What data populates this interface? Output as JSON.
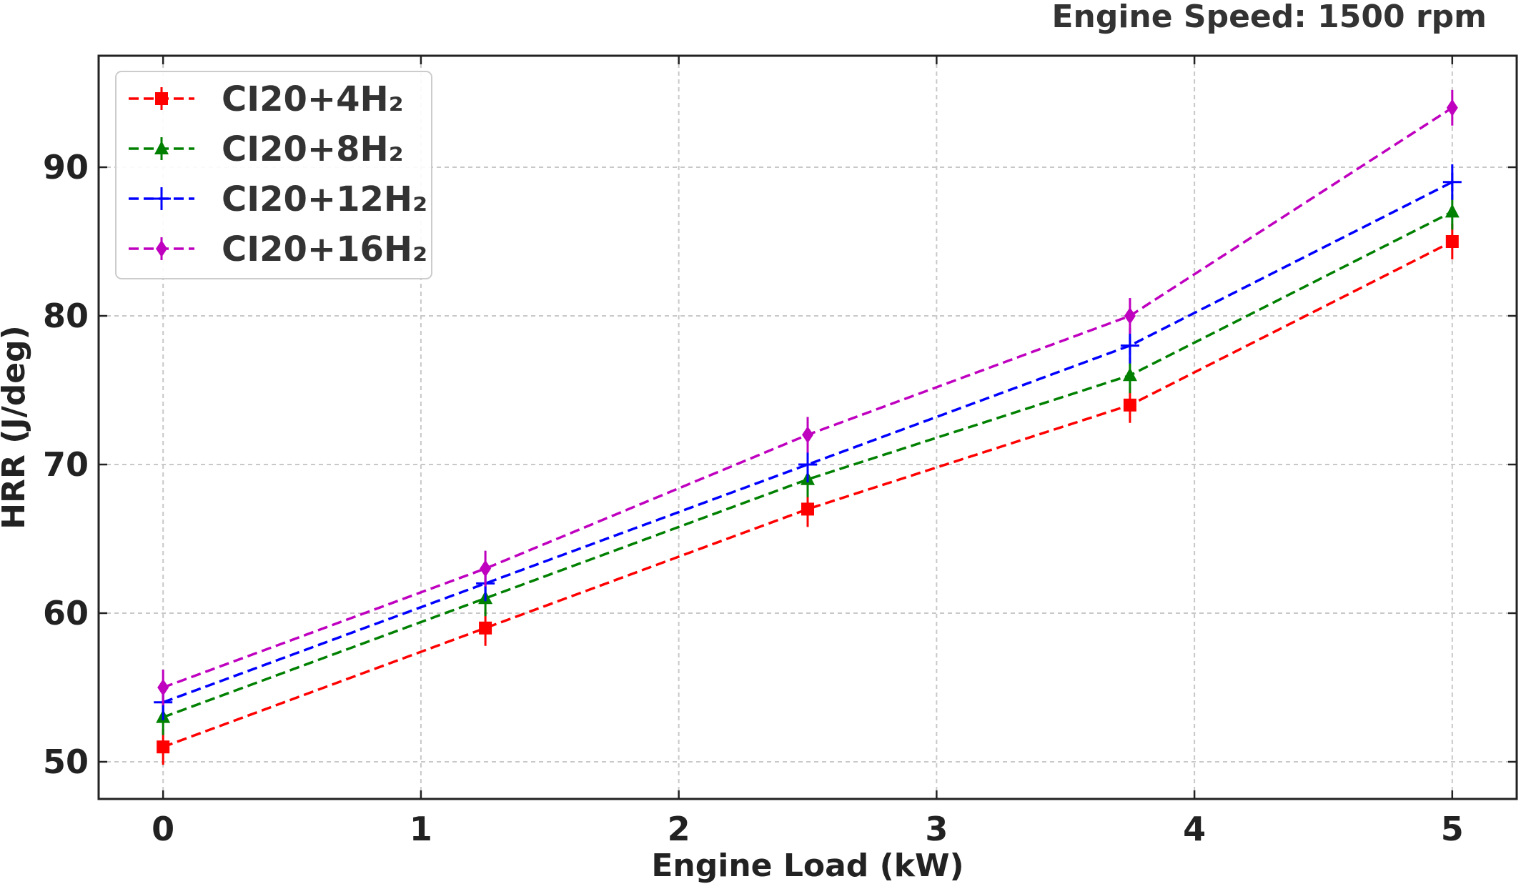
{
  "chart_data": {
    "type": "line",
    "annotation": "Engine Speed: 1500 rpm",
    "xlabel": "Engine Load (kW)",
    "ylabel": "HRR (J/deg)",
    "xlim": [
      -0.25,
      5.25
    ],
    "ylim": [
      47.5,
      97.5
    ],
    "xticks": [
      0,
      1,
      2,
      3,
      4,
      5
    ],
    "yticks": [
      50,
      60,
      70,
      80,
      90
    ],
    "grid": true,
    "legend_position": "top-left",
    "x": [
      0,
      1.25,
      2.5,
      3.75,
      5
    ],
    "series": [
      {
        "name": "CI20+4H₂",
        "color": "#ff0000",
        "marker": "square",
        "values": [
          51,
          59,
          67,
          74,
          85
        ],
        "error": [
          1.2,
          1.2,
          1.2,
          1.2,
          1.2
        ]
      },
      {
        "name": "CI20+8H₂",
        "color": "#008000",
        "marker": "triangle",
        "values": [
          53,
          61,
          69,
          76,
          87
        ],
        "error": [
          1.2,
          1.2,
          1.2,
          1.2,
          1.2
        ]
      },
      {
        "name": "CI20+12H₂",
        "color": "#0000ff",
        "marker": "plus",
        "values": [
          54,
          62,
          70,
          78,
          89
        ],
        "error": [
          1.2,
          1.2,
          1.2,
          1.2,
          1.2
        ]
      },
      {
        "name": "CI20+16H₂",
        "color": "#bf00bf",
        "marker": "diamond",
        "values": [
          55,
          63,
          72,
          80,
          94
        ],
        "error": [
          1.2,
          1.2,
          1.2,
          1.2,
          1.2
        ]
      }
    ]
  }
}
